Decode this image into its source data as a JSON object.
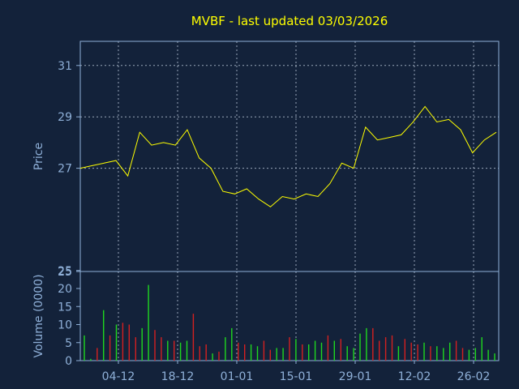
{
  "title": "MVBF - last updated 03/03/2026",
  "colors": {
    "background": "#13223a",
    "price_line": "#ffff00",
    "volume_up": "#1fd81f",
    "volume_down": "#d42020",
    "axis": "#8fb0d8"
  },
  "chart_data": [
    {
      "type": "line",
      "ylabel": "Price",
      "ylim": [
        25,
        32
      ],
      "yticks": [
        "25",
        "27",
        "29",
        "31"
      ],
      "grid": true,
      "x": [
        0,
        3,
        6,
        9,
        12,
        15,
        18,
        21,
        24,
        27,
        30,
        33,
        36,
        39,
        42,
        45,
        48,
        51,
        54,
        57,
        60,
        63,
        66,
        69,
        72,
        75,
        78,
        81,
        84,
        87,
        90,
        93,
        96,
        99,
        102,
        105
      ],
      "values": [
        27.0,
        27.1,
        27.2,
        27.3,
        26.7,
        28.4,
        27.9,
        28.0,
        27.9,
        28.5,
        27.4,
        27.0,
        26.1,
        26.0,
        26.2,
        25.8,
        25.5,
        25.9,
        25.8,
        26.0,
        25.9,
        26.4,
        27.2,
        27.0,
        28.6,
        28.1,
        28.2,
        28.3,
        28.8,
        29.4,
        28.8,
        28.9,
        28.5,
        27.6,
        28.1,
        28.4
      ]
    },
    {
      "type": "bar",
      "ylabel": "Volume (0000)",
      "ylim": [
        0,
        25
      ],
      "yticks": [
        "0",
        "5",
        "10",
        "15",
        "20",
        "25"
      ],
      "xticks": [
        "04-12",
        "18-12",
        "01-01",
        "15-01",
        "29-01",
        "12-02",
        "26-02"
      ],
      "grid": true,
      "bars": [
        {
          "v": 7.0,
          "up": true
        },
        {
          "v": 0.5,
          "up": true
        },
        {
          "v": 3.5,
          "up": false
        },
        {
          "v": 14.0,
          "up": true
        },
        {
          "v": 7.0,
          "up": false
        },
        {
          "v": 10.0,
          "up": true
        },
        {
          "v": 10.5,
          "up": false
        },
        {
          "v": 10.0,
          "up": false
        },
        {
          "v": 6.5,
          "up": false
        },
        {
          "v": 9.0,
          "up": true
        },
        {
          "v": 21.0,
          "up": true
        },
        {
          "v": 8.5,
          "up": false
        },
        {
          "v": 6.5,
          "up": false
        },
        {
          "v": 5.5,
          "up": true
        },
        {
          "v": 5.5,
          "up": false
        },
        {
          "v": 5.0,
          "up": true
        },
        {
          "v": 5.5,
          "up": true
        },
        {
          "v": 13.0,
          "up": false
        },
        {
          "v": 4.0,
          "up": false
        },
        {
          "v": 4.5,
          "up": false
        },
        {
          "v": 2.0,
          "up": true
        },
        {
          "v": 2.5,
          "up": false
        },
        {
          "v": 6.5,
          "up": true
        },
        {
          "v": 9.0,
          "up": true
        },
        {
          "v": 5.0,
          "up": false
        },
        {
          "v": 4.5,
          "up": false
        },
        {
          "v": 4.5,
          "up": true
        },
        {
          "v": 4.0,
          "up": true
        },
        {
          "v": 5.5,
          "up": false
        },
        {
          "v": 3.0,
          "up": false
        },
        {
          "v": 3.5,
          "up": true
        },
        {
          "v": 3.5,
          "up": true
        },
        {
          "v": 6.5,
          "up": false
        },
        {
          "v": 6.0,
          "up": true
        },
        {
          "v": 4.5,
          "up": false
        },
        {
          "v": 4.5,
          "up": true
        },
        {
          "v": 5.5,
          "up": true
        },
        {
          "v": 5.0,
          "up": true
        },
        {
          "v": 7.0,
          "up": false
        },
        {
          "v": 5.5,
          "up": true
        },
        {
          "v": 6.0,
          "up": false
        },
        {
          "v": 4.0,
          "up": true
        },
        {
          "v": 3.5,
          "up": true
        },
        {
          "v": 7.5,
          "up": true
        },
        {
          "v": 9.0,
          "up": true
        },
        {
          "v": 9.0,
          "up": false
        },
        {
          "v": 5.5,
          "up": false
        },
        {
          "v": 6.5,
          "up": false
        },
        {
          "v": 7.0,
          "up": false
        },
        {
          "v": 4.0,
          "up": true
        },
        {
          "v": 6.0,
          "up": false
        },
        {
          "v": 5.0,
          "up": false
        },
        {
          "v": 4.5,
          "up": false
        },
        {
          "v": 5.0,
          "up": true
        },
        {
          "v": 4.0,
          "up": false
        },
        {
          "v": 4.0,
          "up": true
        },
        {
          "v": 3.5,
          "up": true
        },
        {
          "v": 5.0,
          "up": true
        },
        {
          "v": 5.5,
          "up": false
        },
        {
          "v": 3.5,
          "up": false
        },
        {
          "v": 3.0,
          "up": true
        },
        {
          "v": 3.5,
          "up": true
        },
        {
          "v": 6.5,
          "up": true
        },
        {
          "v": 3.0,
          "up": true
        },
        {
          "v": 2.0,
          "up": true
        }
      ]
    }
  ]
}
